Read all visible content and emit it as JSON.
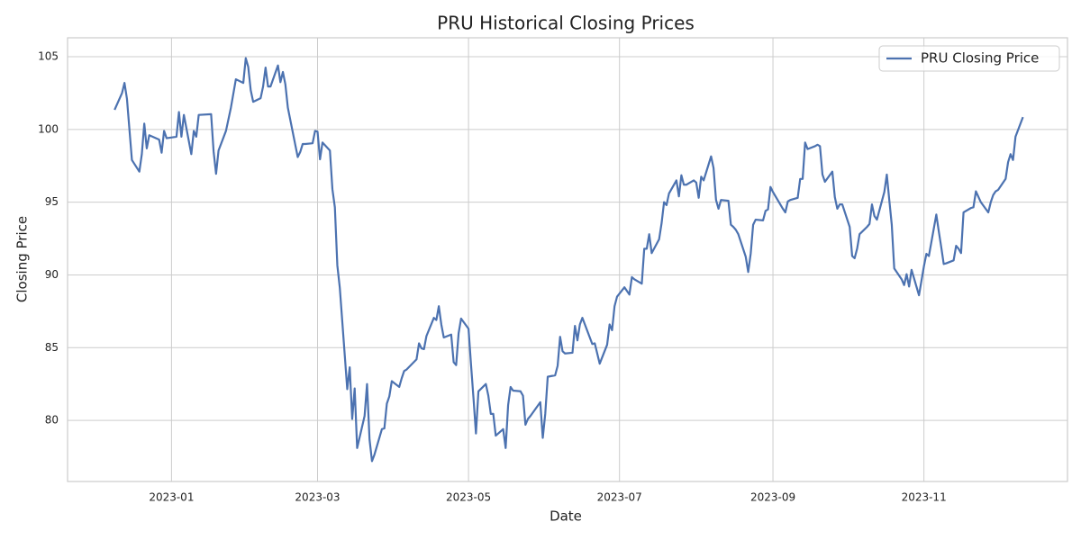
{
  "chart_data": {
    "type": "line",
    "title": "PRU Historical Closing Prices",
    "xlabel": "Date",
    "ylabel": "Closing Price",
    "x": [
      "2022-12-09",
      "2022-12-12",
      "2022-12-13",
      "2022-12-14",
      "2022-12-16",
      "2022-12-19",
      "2022-12-20",
      "2022-12-21",
      "2022-12-22",
      "2022-12-23",
      "2022-12-27",
      "2022-12-28",
      "2022-12-29",
      "2022-12-30",
      "2023-01-03",
      "2023-01-04",
      "2023-01-05",
      "2023-01-06",
      "2023-01-09",
      "2023-01-10",
      "2023-01-11",
      "2023-01-12",
      "2023-01-17",
      "2023-01-18",
      "2023-01-19",
      "2023-01-20",
      "2023-01-23",
      "2023-01-25",
      "2023-01-27",
      "2023-01-30",
      "2023-01-31",
      "2023-02-01",
      "2023-02-02",
      "2023-02-03",
      "2023-02-06",
      "2023-02-07",
      "2023-02-08",
      "2023-02-09",
      "2023-02-10",
      "2023-02-13",
      "2023-02-14",
      "2023-02-15",
      "2023-02-16",
      "2023-02-17",
      "2023-02-21",
      "2023-02-22",
      "2023-02-23",
      "2023-02-24",
      "2023-02-27",
      "2023-02-28",
      "2023-03-01",
      "2023-03-02",
      "2023-03-03",
      "2023-03-06",
      "2023-03-07",
      "2023-03-08",
      "2023-03-09",
      "2023-03-10",
      "2023-03-13",
      "2023-03-14",
      "2023-03-15",
      "2023-03-16",
      "2023-03-17",
      "2023-03-20",
      "2023-03-21",
      "2023-03-22",
      "2023-03-23",
      "2023-03-24",
      "2023-03-27",
      "2023-03-28",
      "2023-03-29",
      "2023-03-30",
      "2023-03-31",
      "2023-04-03",
      "2023-04-04",
      "2023-04-05",
      "2023-04-06",
      "2023-04-10",
      "2023-04-11",
      "2023-04-12",
      "2023-04-13",
      "2023-04-14",
      "2023-04-17",
      "2023-04-18",
      "2023-04-19",
      "2023-04-20",
      "2023-04-21",
      "2023-04-24",
      "2023-04-25",
      "2023-04-26",
      "2023-04-27",
      "2023-04-28",
      "2023-05-01",
      "2023-05-02",
      "2023-05-03",
      "2023-05-04",
      "2023-05-05",
      "2023-05-08",
      "2023-05-09",
      "2023-05-10",
      "2023-05-11",
      "2023-05-12",
      "2023-05-15",
      "2023-05-16",
      "2023-05-17",
      "2023-05-18",
      "2023-05-19",
      "2023-05-22",
      "2023-05-23",
      "2023-05-24",
      "2023-05-25",
      "2023-05-26",
      "2023-05-30",
      "2023-05-31",
      "2023-06-01",
      "2023-06-02",
      "2023-06-05",
      "2023-06-06",
      "2023-06-07",
      "2023-06-08",
      "2023-06-09",
      "2023-06-12",
      "2023-06-13",
      "2023-06-14",
      "2023-06-15",
      "2023-06-16",
      "2023-06-20",
      "2023-06-21",
      "2023-06-22",
      "2023-06-23",
      "2023-06-26",
      "2023-06-27",
      "2023-06-28",
      "2023-06-29",
      "2023-06-30",
      "2023-07-03",
      "2023-07-05",
      "2023-07-06",
      "2023-07-07",
      "2023-07-10",
      "2023-07-11",
      "2023-07-12",
      "2023-07-13",
      "2023-07-14",
      "2023-07-17",
      "2023-07-18",
      "2023-07-19",
      "2023-07-20",
      "2023-07-21",
      "2023-07-24",
      "2023-07-25",
      "2023-07-26",
      "2023-07-27",
      "2023-07-28",
      "2023-07-31",
      "2023-08-01",
      "2023-08-02",
      "2023-08-03",
      "2023-08-04",
      "2023-08-07",
      "2023-08-08",
      "2023-08-09",
      "2023-08-10",
      "2023-08-11",
      "2023-08-14",
      "2023-08-15",
      "2023-08-16",
      "2023-08-17",
      "2023-08-18",
      "2023-08-21",
      "2023-08-22",
      "2023-08-23",
      "2023-08-24",
      "2023-08-25",
      "2023-08-28",
      "2023-08-29",
      "2023-08-30",
      "2023-08-31",
      "2023-09-01",
      "2023-09-05",
      "2023-09-06",
      "2023-09-07",
      "2023-09-08",
      "2023-09-11",
      "2023-09-12",
      "2023-09-13",
      "2023-09-14",
      "2023-09-15",
      "2023-09-18",
      "2023-09-19",
      "2023-09-20",
      "2023-09-21",
      "2023-09-22",
      "2023-09-25",
      "2023-09-26",
      "2023-09-27",
      "2023-09-28",
      "2023-09-29",
      "2023-10-02",
      "2023-10-03",
      "2023-10-04",
      "2023-10-05",
      "2023-10-06",
      "2023-10-09",
      "2023-10-10",
      "2023-10-11",
      "2023-10-12",
      "2023-10-13",
      "2023-10-16",
      "2023-10-17",
      "2023-10-18",
      "2023-10-19",
      "2023-10-20",
      "2023-10-23",
      "2023-10-24",
      "2023-10-25",
      "2023-10-26",
      "2023-10-27",
      "2023-10-30",
      "2023-10-31",
      "2023-11-01",
      "2023-11-02",
      "2023-11-03",
      "2023-11-06",
      "2023-11-07",
      "2023-11-08",
      "2023-11-09",
      "2023-11-10",
      "2023-11-13",
      "2023-11-14",
      "2023-11-15",
      "2023-11-16",
      "2023-11-17",
      "2023-11-20",
      "2023-11-21",
      "2023-11-22",
      "2023-11-24",
      "2023-11-27",
      "2023-11-28",
      "2023-11-29",
      "2023-11-30",
      "2023-12-01",
      "2023-12-04",
      "2023-12-05",
      "2023-12-06",
      "2023-12-07",
      "2023-12-08",
      "2023-12-11"
    ],
    "series": [
      {
        "name": "PRU Closing Price",
        "color": "#4c72b0",
        "values": [
          101.35,
          102.5,
          103.2,
          102.1,
          97.9,
          97.1,
          98.3,
          100.4,
          98.7,
          99.6,
          99.3,
          98.4,
          99.9,
          99.4,
          99.5,
          101.2,
          99.5,
          101.0,
          98.3,
          99.9,
          99.5,
          101.0,
          101.05,
          98.5,
          96.95,
          98.55,
          99.9,
          101.5,
          103.45,
          103.2,
          104.9,
          104.3,
          102.7,
          101.9,
          102.15,
          102.95,
          104.25,
          102.95,
          102.95,
          104.4,
          103.25,
          103.95,
          103.1,
          101.5,
          98.1,
          98.45,
          99.0,
          99.0,
          99.05,
          99.9,
          99.85,
          97.95,
          99.1,
          98.55,
          95.9,
          94.65,
          90.65,
          89.1,
          82.15,
          83.65,
          80.1,
          82.2,
          78.1,
          80.3,
          82.5,
          78.7,
          77.2,
          77.65,
          79.4,
          79.45,
          81.15,
          81.65,
          82.7,
          82.3,
          82.9,
          83.4,
          83.5,
          84.2,
          85.3,
          84.95,
          84.9,
          85.8,
          87.05,
          86.9,
          87.85,
          86.6,
          85.7,
          85.9,
          84.0,
          83.8,
          86.0,
          87.0,
          86.3,
          83.85,
          81.55,
          79.1,
          82.0,
          82.5,
          81.7,
          80.45,
          80.45,
          78.95,
          79.4,
          78.1,
          81.05,
          82.3,
          82.05,
          82.0,
          81.7,
          79.7,
          80.1,
          80.3,
          81.25,
          78.8,
          80.45,
          83.0,
          83.1,
          83.75,
          85.75,
          84.75,
          84.6,
          84.65,
          86.5,
          85.5,
          86.6,
          87.05,
          85.25,
          85.3,
          84.6,
          83.9,
          85.2,
          86.6,
          86.2,
          87.85,
          88.5,
          89.15,
          88.65,
          89.85,
          89.7,
          89.4,
          91.8,
          91.8,
          92.8,
          91.5,
          92.45,
          93.55,
          95.0,
          94.8,
          95.6,
          96.5,
          95.4,
          96.85,
          96.2,
          96.2,
          96.5,
          96.35,
          95.3,
          96.75,
          96.5,
          98.15,
          97.35,
          95.15,
          94.55,
          95.15,
          95.1,
          93.45,
          93.3,
          93.1,
          92.8,
          91.25,
          90.2,
          91.45,
          93.45,
          93.8,
          93.75,
          94.4,
          94.5,
          96.05,
          95.7,
          94.55,
          94.3,
          95.05,
          95.15,
          95.3,
          96.6,
          96.6,
          99.1,
          98.65,
          98.85,
          98.95,
          98.85,
          96.9,
          96.4,
          97.1,
          95.35,
          94.55,
          94.85,
          94.85,
          93.3,
          91.3,
          91.15,
          91.8,
          92.8,
          93.3,
          93.5,
          94.85,
          94.05,
          93.8,
          95.7,
          96.9,
          95.15,
          93.45,
          90.45,
          89.7,
          89.3,
          90.05,
          89.2,
          90.35,
          88.6,
          89.6,
          90.6,
          91.45,
          91.3,
          94.15,
          93.0,
          91.9,
          90.75,
          90.8,
          91.0,
          92.0,
          91.8,
          91.5,
          94.3,
          94.6,
          94.65,
          95.75,
          95.0,
          94.3,
          95.0,
          95.5,
          95.75,
          95.85,
          96.6,
          97.75,
          98.3,
          97.9,
          99.5,
          100.85
        ]
      }
    ],
    "xlim": [
      "2022-11-20",
      "2023-12-29"
    ],
    "xticks": [
      "2023-01",
      "2023-03",
      "2023-05",
      "2023-07",
      "2023-09",
      "2023-11"
    ],
    "ylim": [
      75.8,
      106.3
    ],
    "yticks": [
      80,
      85,
      90,
      95,
      100,
      105
    ],
    "grid": true,
    "legend": "upper right"
  }
}
